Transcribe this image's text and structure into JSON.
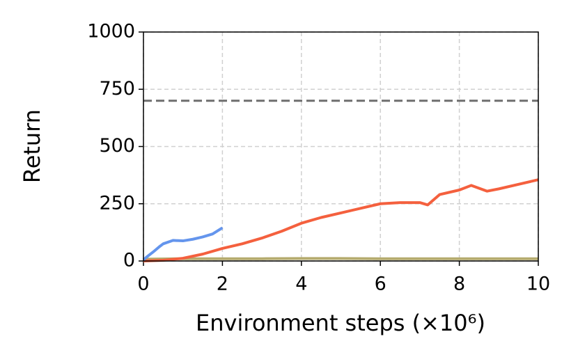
{
  "chart_data": {
    "type": "line",
    "xlabel": "Environment steps (×10⁶)",
    "ylabel": "Return",
    "xlim": [
      0,
      10
    ],
    "xticks": [
      0,
      2,
      4,
      6,
      8,
      10
    ],
    "ylim": [
      0,
      1000
    ],
    "yticks": [
      0,
      250,
      500,
      750,
      1000
    ],
    "grid": true,
    "reference_line": {
      "value": 700,
      "color": "#6e6e6e"
    },
    "series": [
      {
        "color": "#6495ed",
        "x": [
          0,
          0.1,
          0.25,
          0.4,
          0.5,
          0.75,
          1,
          1.25,
          1.5,
          1.75,
          2
        ],
        "values": [
          5,
          20,
          40,
          62,
          75,
          90,
          88,
          95,
          105,
          118,
          145
        ]
      },
      {
        "color": "#f4603e",
        "x": [
          0,
          0.5,
          1,
          1.5,
          2,
          2.5,
          3,
          3.5,
          4,
          4.5,
          5,
          5.5,
          6,
          6.5,
          7,
          7.2,
          7.5,
          8,
          8.3,
          8.7,
          9,
          9.5,
          10
        ],
        "values": [
          0,
          3,
          12,
          30,
          55,
          75,
          100,
          130,
          165,
          190,
          210,
          230,
          250,
          255,
          255,
          245,
          290,
          310,
          330,
          305,
          315,
          335,
          355
        ]
      },
      {
        "color": "#b5ab6e",
        "x": [
          0,
          1,
          2,
          3,
          4,
          5,
          6,
          7,
          8,
          9,
          10
        ],
        "values": [
          8,
          10,
          10,
          10,
          11,
          11,
          10,
          10,
          10,
          10,
          10
        ]
      }
    ]
  }
}
